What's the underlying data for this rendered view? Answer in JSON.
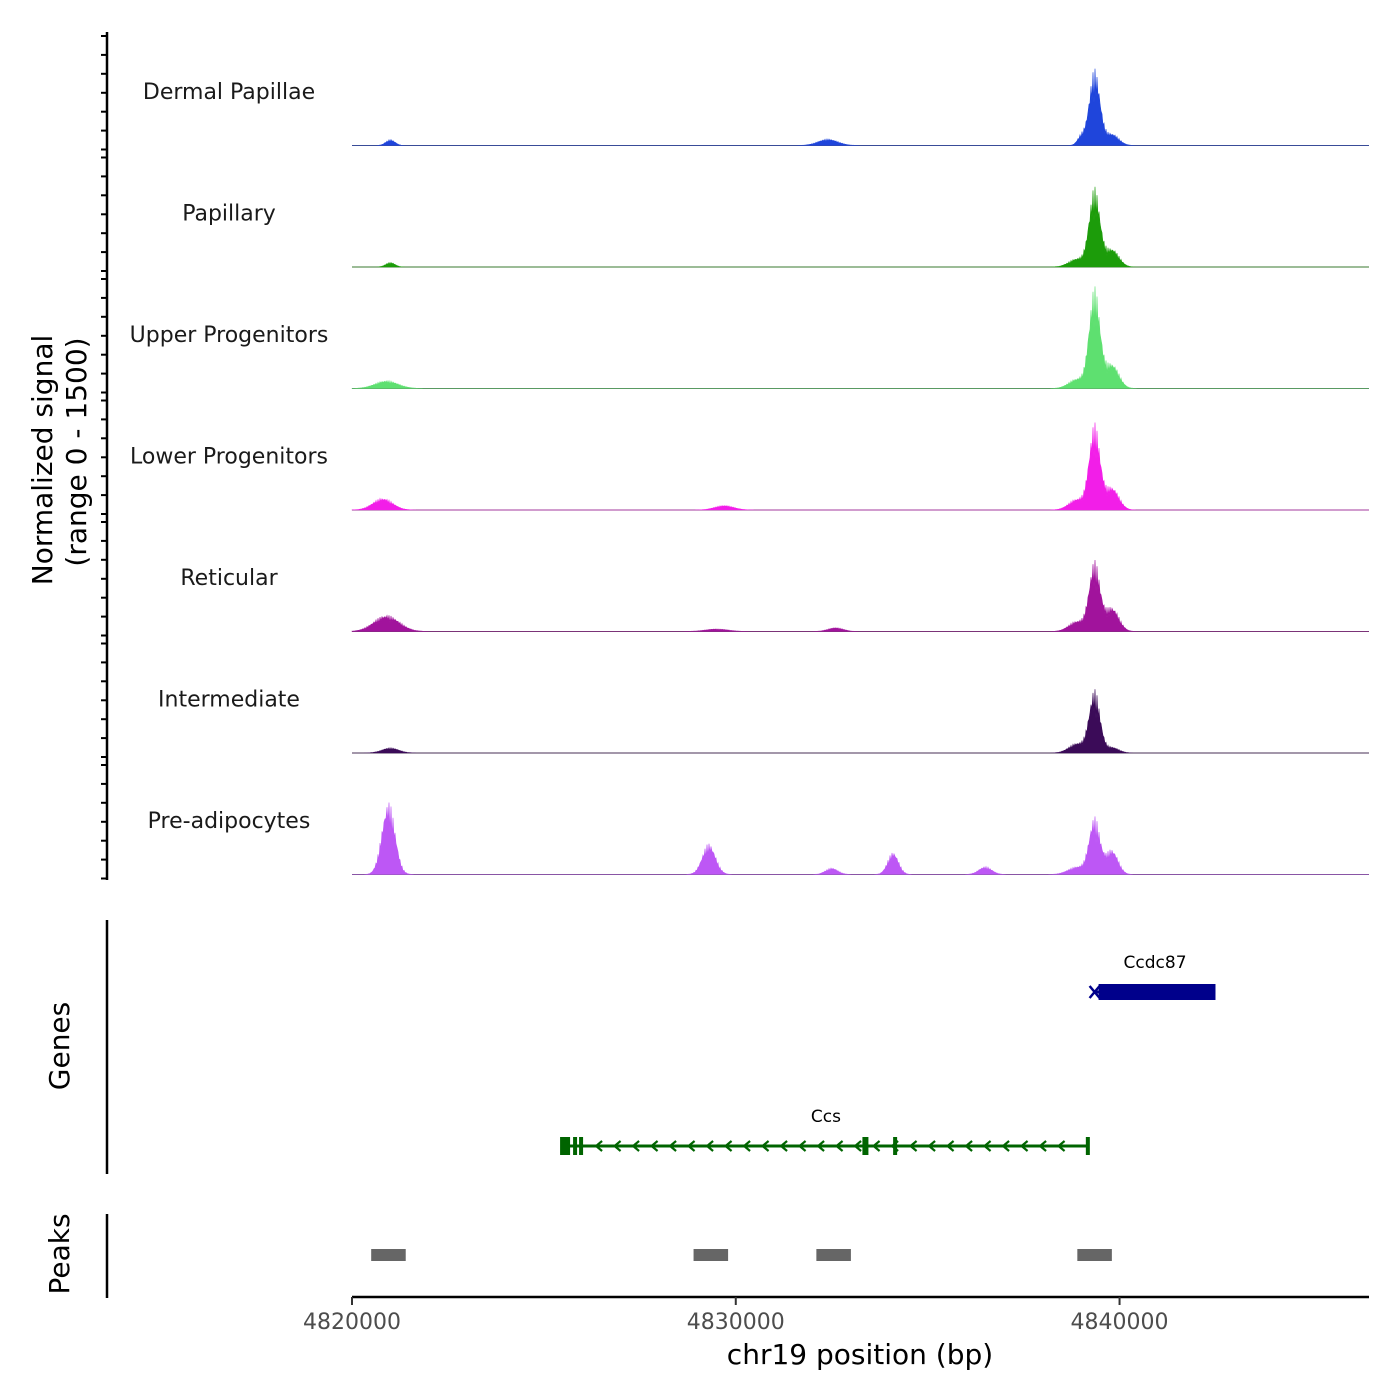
{
  "chart_data": {
    "type": "area",
    "chromosome": "chr19",
    "xlabel": "chr19 position (bp)",
    "ylabel_line1": "Normalized signal",
    "ylabel_line2": "(range 0 - 1500)",
    "ylim": [
      0,
      1500
    ],
    "xlim": [
      4820000,
      4846500
    ],
    "x_ticks": [
      {
        "value": 4820000,
        "label": "4820000"
      },
      {
        "value": 4830000,
        "label": "4830000"
      },
      {
        "value": 4840000,
        "label": "4840000"
      }
    ],
    "tracks": [
      {
        "name": "Dermal Papillae",
        "color": "#1f45db",
        "peaks": [
          [
            4821000,
            90,
            120
          ],
          [
            4832400,
            100,
            260
          ],
          [
            4839000,
            140,
            100
          ],
          [
            4839350,
            1150,
            140
          ],
          [
            4839800,
            180,
            180
          ]
        ]
      },
      {
        "name": "Papillary",
        "color": "#1c9c0a",
        "peaks": [
          [
            4821000,
            70,
            120
          ],
          [
            4838900,
            130,
            220
          ],
          [
            4839350,
            1180,
            140
          ],
          [
            4839800,
            280,
            180
          ]
        ]
      },
      {
        "name": "Upper Progenitors",
        "color": "#5ee070",
        "peaks": [
          [
            4820900,
            120,
            300
          ],
          [
            4838900,
            150,
            220
          ],
          [
            4839350,
            1500,
            140
          ],
          [
            4839800,
            380,
            180
          ]
        ]
      },
      {
        "name": "Lower Progenitors",
        "color": "#f21ee8",
        "peaks": [
          [
            4820800,
            180,
            260
          ],
          [
            4829700,
            70,
            250
          ],
          [
            4838900,
            170,
            220
          ],
          [
            4839350,
            1280,
            140
          ],
          [
            4839800,
            350,
            180
          ]
        ]
      },
      {
        "name": "Reticular",
        "color": "#a1139c",
        "peaks": [
          [
            4820900,
            250,
            330
          ],
          [
            4829500,
            40,
            300
          ],
          [
            4832600,
            60,
            200
          ],
          [
            4838900,
            160,
            220
          ],
          [
            4839350,
            1040,
            140
          ],
          [
            4839800,
            370,
            180
          ]
        ]
      },
      {
        "name": "Intermediate",
        "color": "#3b0b58",
        "peaks": [
          [
            4821000,
            80,
            220
          ],
          [
            4838900,
            150,
            220
          ],
          [
            4839350,
            940,
            140
          ],
          [
            4839800,
            90,
            180
          ]
        ]
      },
      {
        "name": "Pre-adipocytes",
        "color": "#bd57f5",
        "peaks": [
          [
            4820950,
            1100,
            170
          ],
          [
            4829300,
            470,
            170
          ],
          [
            4832500,
            100,
            160
          ],
          [
            4834100,
            340,
            140
          ],
          [
            4836500,
            120,
            170
          ],
          [
            4838900,
            120,
            240
          ],
          [
            4839350,
            850,
            140
          ],
          [
            4839800,
            380,
            160
          ]
        ]
      }
    ],
    "gene_track_label": "Genes",
    "genes": [
      {
        "name": "Ccdc87",
        "start": 4839350,
        "end": 4842500,
        "strand": "+",
        "color": "#00008b",
        "row": 0
      },
      {
        "name": "Ccs",
        "start": 4825500,
        "end": 4839200,
        "strand": "-",
        "color": "#006400",
        "row": 1
      }
    ],
    "peak_track_label": "Peaks",
    "peak_regions": [
      {
        "start": 4820500,
        "end": 4821400
      },
      {
        "start": 4828900,
        "end": 4829800
      },
      {
        "start": 4832100,
        "end": 4833000
      },
      {
        "start": 4838900,
        "end": 4839800
      }
    ],
    "peak_color": "#666666"
  }
}
